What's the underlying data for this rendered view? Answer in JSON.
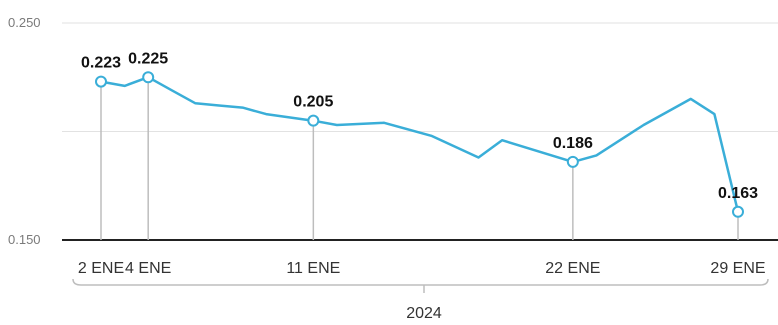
{
  "chart_data": {
    "type": "line",
    "title": "",
    "xlabel": "2024",
    "ylabel": "",
    "ylim": [
      0.15,
      0.25
    ],
    "yticks": [
      {
        "value": 0.25,
        "label": "0.250"
      },
      {
        "value": 0.15,
        "label": "0.150"
      }
    ],
    "grid": true,
    "line_color": "#3aaed8",
    "marker_fill": "#ffffff",
    "points": [
      {
        "x": "2024-01-02",
        "y": 0.223,
        "label": "0.223",
        "tick": "2 ENE"
      },
      {
        "x": "2024-01-03",
        "y": 0.221
      },
      {
        "x": "2024-01-04",
        "y": 0.225,
        "label": "0.225",
        "tick": "4 ENE"
      },
      {
        "x": "2024-01-05",
        "y": 0.219
      },
      {
        "x": "2024-01-06",
        "y": 0.213
      },
      {
        "x": "2024-01-07",
        "y": 0.212
      },
      {
        "x": "2024-01-08",
        "y": 0.211
      },
      {
        "x": "2024-01-09",
        "y": 0.208
      },
      {
        "x": "2024-01-11",
        "y": 0.205,
        "label": "0.205",
        "tick": "11 ENE"
      },
      {
        "x": "2024-01-12",
        "y": 0.203
      },
      {
        "x": "2024-01-14",
        "y": 0.204
      },
      {
        "x": "2024-01-16",
        "y": 0.198
      },
      {
        "x": "2024-01-18",
        "y": 0.188
      },
      {
        "x": "2024-01-19",
        "y": 0.196
      },
      {
        "x": "2024-01-22",
        "y": 0.186,
        "label": "0.186",
        "tick": "22 ENE"
      },
      {
        "x": "2024-01-23",
        "y": 0.189
      },
      {
        "x": "2024-01-25",
        "y": 0.203
      },
      {
        "x": "2024-01-27",
        "y": 0.215
      },
      {
        "x": "2024-01-28",
        "y": 0.208
      },
      {
        "x": "2024-01-29",
        "y": 0.163,
        "label": "0.163",
        "tick": "29 ENE"
      }
    ]
  }
}
